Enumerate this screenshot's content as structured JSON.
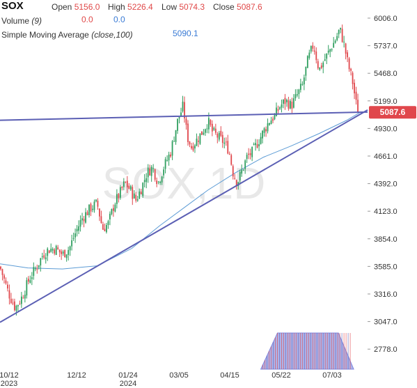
{
  "header": {
    "symbol": "SOX",
    "open_label": "Open",
    "open_value": "5156.0",
    "high_label": "High",
    "high_value": "5226.4",
    "low_label": "Low",
    "low_value": "5074.3",
    "close_label": "Close",
    "close_value": "5087.6",
    "volume_label": "Volume",
    "volume_param": "(9)",
    "volume_value_1": "0.0",
    "volume_value_2": "0.0",
    "sma_label": "Simple Moving Average",
    "sma_param": "(close,100)",
    "sma_value": "5090.1"
  },
  "watermark": "SOX,1D",
  "colors": {
    "up": "#2e9e5e",
    "down": "#e0474c",
    "trendline": "#5b5fb4",
    "sma": "#5b9bd5",
    "price_badge": "#e0474c",
    "volume_fill": "#9fa8e8"
  },
  "chart_data": {
    "type": "candlestick",
    "ylim": [
      2700,
      6060
    ],
    "y_ticks": [
      "6006.0",
      "5737.0",
      "5468.0",
      "5199.0",
      "4930.0",
      "4661.0",
      "4392.0",
      "4123.0",
      "3854.0",
      "3585.0",
      "3316.0",
      "3047.0",
      "2778.0"
    ],
    "x_ticks": [
      {
        "label": "10/12",
        "sublabel": "2023"
      },
      {
        "label": "12/12",
        "sublabel": ""
      },
      {
        "label": "01/24",
        "sublabel": "2024"
      },
      {
        "label": "03/05",
        "sublabel": ""
      },
      {
        "label": "04/15",
        "sublabel": ""
      },
      {
        "label": "05/22",
        "sublabel": ""
      },
      {
        "label": "07/03",
        "sublabel": ""
      }
    ],
    "last_price": "5087.6",
    "close_path": [
      [
        0,
        3580
      ],
      [
        12,
        3330
      ],
      [
        22,
        3180
      ],
      [
        32,
        3290
      ],
      [
        42,
        3460
      ],
      [
        52,
        3570
      ],
      [
        62,
        3700
      ],
      [
        70,
        3750
      ],
      [
        80,
        3760
      ],
      [
        90,
        3700
      ],
      [
        100,
        3760
      ],
      [
        108,
        3900
      ],
      [
        118,
        4050
      ],
      [
        130,
        4150
      ],
      [
        140,
        4200
      ],
      [
        148,
        3950
      ],
      [
        156,
        4000
      ],
      [
        165,
        4200
      ],
      [
        173,
        4300
      ],
      [
        180,
        4400
      ],
      [
        188,
        4330
      ],
      [
        196,
        4230
      ],
      [
        204,
        4350
      ],
      [
        212,
        4500
      ],
      [
        220,
        4550
      ],
      [
        228,
        4400
      ],
      [
        236,
        4550
      ],
      [
        246,
        4700
      ],
      [
        256,
        5000
      ],
      [
        264,
        5150
      ],
      [
        270,
        4850
      ],
      [
        276,
        4750
      ],
      [
        284,
        4820
      ],
      [
        292,
        4900
      ],
      [
        300,
        5000
      ],
      [
        306,
        4900
      ],
      [
        314,
        4850
      ],
      [
        322,
        4800
      ],
      [
        330,
        4720
      ],
      [
        336,
        4500
      ],
      [
        342,
        4400
      ],
      [
        348,
        4500
      ],
      [
        356,
        4650
      ],
      [
        364,
        4700
      ],
      [
        372,
        4800
      ],
      [
        380,
        4900
      ],
      [
        388,
        5000
      ],
      [
        396,
        5050
      ],
      [
        404,
        5150
      ],
      [
        412,
        5200
      ],
      [
        420,
        5150
      ],
      [
        428,
        5250
      ],
      [
        436,
        5350
      ],
      [
        444,
        5600
      ],
      [
        452,
        5750
      ],
      [
        460,
        5500
      ],
      [
        468,
        5600
      ],
      [
        476,
        5700
      ],
      [
        484,
        5800
      ],
      [
        490,
        5900
      ],
      [
        496,
        5750
      ],
      [
        502,
        5550
      ],
      [
        508,
        5400
      ],
      [
        514,
        5150
      ],
      [
        518,
        5087.6
      ]
    ],
    "trendlines": [
      {
        "name": "",
        "points": [
          [
            0,
            5010
          ],
          [
            530,
            5090
          ]
        ]
      },
      {
        "name": "",
        "points": [
          [
            0,
            3040
          ],
          [
            530,
            5110
          ]
        ]
      }
    ],
    "sma_path": [
      [
        0,
        3610
      ],
      [
        40,
        3570
      ],
      [
        90,
        3560
      ],
      [
        140,
        3590
      ],
      [
        190,
        3760
      ],
      [
        230,
        3980
      ],
      [
        270,
        4180
      ],
      [
        300,
        4330
      ],
      [
        340,
        4500
      ],
      [
        380,
        4650
      ],
      [
        420,
        4760
      ],
      [
        460,
        4880
      ],
      [
        500,
        5010
      ],
      [
        520,
        5090
      ]
    ],
    "volume_profile": [
      [
        376,
        0
      ],
      [
        400,
        1
      ],
      [
        488,
        1
      ],
      [
        510,
        0
      ]
    ]
  }
}
